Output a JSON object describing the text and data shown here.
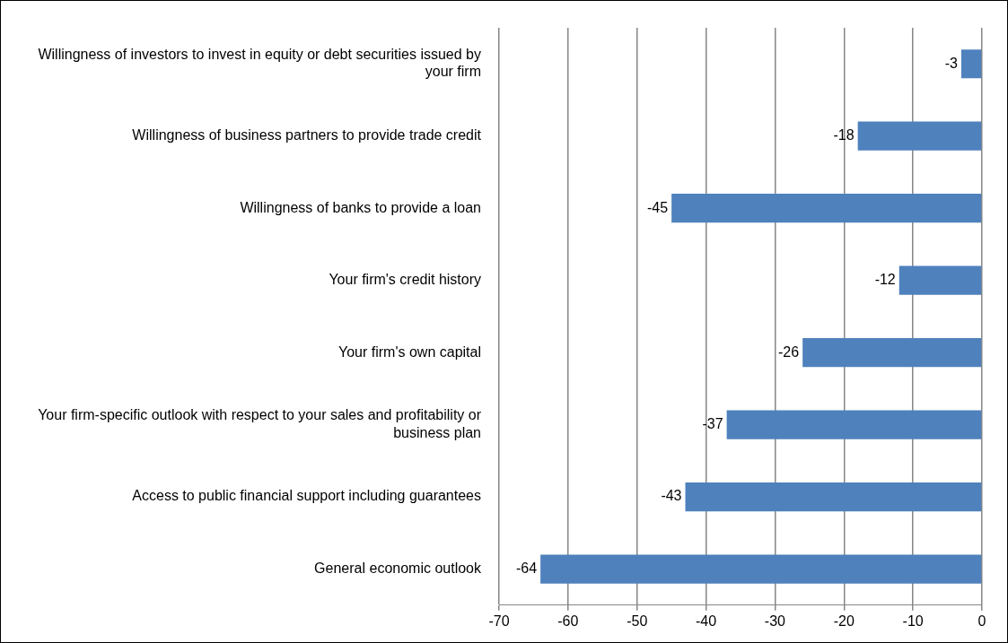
{
  "chart_data": {
    "type": "bar",
    "orientation": "horizontal",
    "categories": [
      "Willingness of investors to invest in equity or debt securities issued by your firm",
      "Willingness of business partners to provide trade credit",
      "Willingness of banks to provide a loan",
      "Your firm's credit history",
      "Your firm's own capital",
      "Your firm-specific outlook with respect to your sales and profitability or business plan",
      "Access to public financial support including guarantees",
      "General economic outlook"
    ],
    "values": [
      -3,
      -18,
      -45,
      -12,
      -26,
      -37,
      -43,
      -64
    ],
    "color": "#4f81bd",
    "xlim": [
      -70,
      0
    ],
    "xticks": [
      -70,
      -60,
      -50,
      -40,
      -30,
      -20,
      -10,
      0
    ],
    "grid": "x",
    "data_labels": true,
    "legend": false
  }
}
